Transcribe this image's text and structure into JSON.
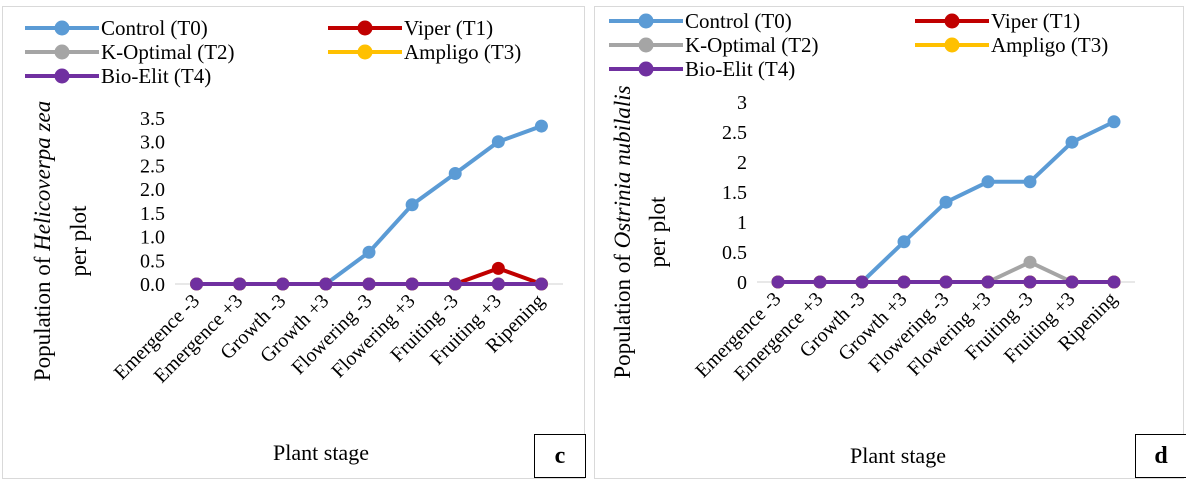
{
  "chart_data": [
    {
      "type": "line",
      "panel_label": "c",
      "categories": [
        "Emergence -3",
        "Emergence +3",
        "Growth -3",
        "Growth +3",
        "Flowering -3",
        "Flowering +3",
        "Fruiting -3",
        "Fruiting +3",
        "Ripening"
      ],
      "xlabel": "Plant stage",
      "ylabel_prefix": "Population of ",
      "ylabel_italic": "Helicoverpa zea",
      "ylabel_line2": "per plot",
      "ylim": [
        0,
        3.5
      ],
      "ytick_step": 0.5,
      "ytick_decimals": 1,
      "yticks": [
        "0.0",
        "0.5",
        "1.0",
        "1.5",
        "2.0",
        "2.5",
        "3.0",
        "3.5"
      ],
      "grid": false,
      "legend_position": "top",
      "series": [
        {
          "name": "Control (T0)",
          "color": "#5b9bd5",
          "values": [
            0,
            0,
            0,
            0,
            0.67,
            1.67,
            2.33,
            3.0,
            3.33
          ]
        },
        {
          "name": "Viper (T1)",
          "color": "#c00000",
          "values": [
            0,
            0,
            0,
            0,
            0,
            0,
            0,
            0.33,
            0
          ]
        },
        {
          "name": "K-Optimal (T2)",
          "color": "#a5a5a5",
          "values": [
            0,
            0,
            0,
            0,
            0,
            0,
            0,
            0,
            0
          ]
        },
        {
          "name": "Ampligo (T3)",
          "color": "#ffc000",
          "values": [
            0,
            0,
            0,
            0,
            0,
            0,
            0,
            0,
            0
          ]
        },
        {
          "name": "Bio-Elit (T4)",
          "color": "#7030a0",
          "values": [
            0,
            0,
            0,
            0,
            0,
            0,
            0,
            0,
            0
          ]
        }
      ]
    },
    {
      "type": "line",
      "panel_label": "d",
      "categories": [
        "Emergence -3",
        "Emergence +3",
        "Growth -3",
        "Growth +3",
        "Flowering -3",
        "Flowering +3",
        "Fruiting -3",
        "Fruiting +3",
        "Ripening"
      ],
      "xlabel": "Plant stage",
      "ylabel_prefix": "Population of ",
      "ylabel_italic": "Ostrinia nubilalis",
      "ylabel_line2": "per plot",
      "ylim": [
        0,
        3
      ],
      "ytick_step": 0.5,
      "ytick_decimals": -1,
      "yticks": [
        "0",
        "0.5",
        "1",
        "1.5",
        "2",
        "2.5",
        "3"
      ],
      "grid": false,
      "legend_position": "top",
      "series": [
        {
          "name": "Control (T0)",
          "color": "#5b9bd5",
          "values": [
            0,
            0,
            0,
            0.67,
            1.33,
            1.67,
            1.67,
            2.33,
            2.67
          ]
        },
        {
          "name": "Viper (T1)",
          "color": "#c00000",
          "values": [
            0,
            0,
            0,
            0,
            0,
            0,
            0,
            0,
            0
          ]
        },
        {
          "name": "K-Optimal (T2)",
          "color": "#a5a5a5",
          "values": [
            0,
            0,
            0,
            0,
            0,
            0,
            0.33,
            0,
            0
          ]
        },
        {
          "name": "Ampligo (T3)",
          "color": "#ffc000",
          "values": [
            0,
            0,
            0,
            0,
            0,
            0,
            0,
            0,
            0
          ]
        },
        {
          "name": "Bio-Elit (T4)",
          "color": "#7030a0",
          "values": [
            0,
            0,
            0,
            0,
            0,
            0,
            0,
            0,
            0
          ]
        }
      ]
    }
  ]
}
